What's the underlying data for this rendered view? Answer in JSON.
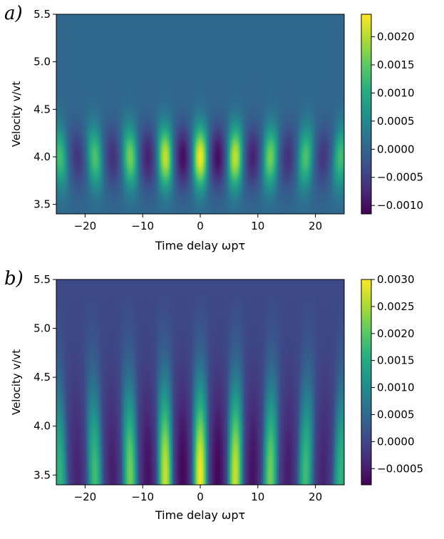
{
  "chart_data": [
    {
      "type": "heatmap",
      "panel_label": "a)",
      "xlabel": "Time delay ωpτ",
      "ylabel": "Velocity v/vt",
      "xlim": [
        -25,
        25
      ],
      "ylim": [
        3.4,
        5.5
      ],
      "xticks": [
        -20,
        -10,
        0,
        10,
        20
      ],
      "yticks": [
        3.5,
        4.0,
        4.5,
        5.0,
        5.5
      ],
      "ytick_labels": [
        "3.5",
        "4.0",
        "4.5",
        "5.0",
        "5.5"
      ],
      "colormap": "viridis",
      "colorbar": {
        "vmin": -0.00115,
        "vmax": 0.0024,
        "ticks": [
          -0.001,
          -0.0005,
          0.0,
          0.0005,
          0.001,
          0.0015,
          0.002
        ],
        "tick_labels": [
          "−0.0010",
          "−0.0005",
          "0.0000",
          "0.0005",
          "0.0010",
          "0.0015",
          "0.0020"
        ]
      },
      "pattern": {
        "fringe_period": 6.1,
        "center_velocity": 4.0,
        "velocity_width": 0.32,
        "envelope_width": 11.5,
        "tilt": 0.7,
        "peak_value": 0.0023,
        "trough_value": -0.0011,
        "background": 5e-05,
        "flat_above_velocity": 4.9
      }
    },
    {
      "type": "heatmap",
      "panel_label": "b)",
      "xlabel": "Time delay ωpτ",
      "ylabel": "Velocity v/vt",
      "xlim": [
        -25,
        25
      ],
      "ylim": [
        3.4,
        5.5
      ],
      "xticks": [
        -20,
        -10,
        0,
        10,
        20
      ],
      "yticks": [
        3.5,
        4.0,
        4.5,
        5.0,
        5.5
      ],
      "ytick_labels": [
        "3.5",
        "4.0",
        "4.5",
        "5.0",
        "5.5"
      ],
      "colormap": "viridis",
      "colorbar": {
        "vmin": -0.0008,
        "vmax": 0.003,
        "ticks": [
          -0.0005,
          0.0,
          0.0005,
          0.001,
          0.0015,
          0.002,
          0.0025,
          0.003
        ],
        "tick_labels": [
          "−0.0005",
          "0.0000",
          "0.0005",
          "0.0010",
          "0.0015",
          "0.0020",
          "0.0025",
          "0.0030"
        ]
      },
      "pattern": {
        "fringe_period": 6.1,
        "center_velocity": 3.5,
        "velocity_width": 0.9,
        "envelope_width": 13.0,
        "tilt": 0.35,
        "peak_value": 0.0029,
        "trough_value": -0.0008,
        "background": 5e-05,
        "flat_above_velocity": 5.35
      }
    }
  ]
}
